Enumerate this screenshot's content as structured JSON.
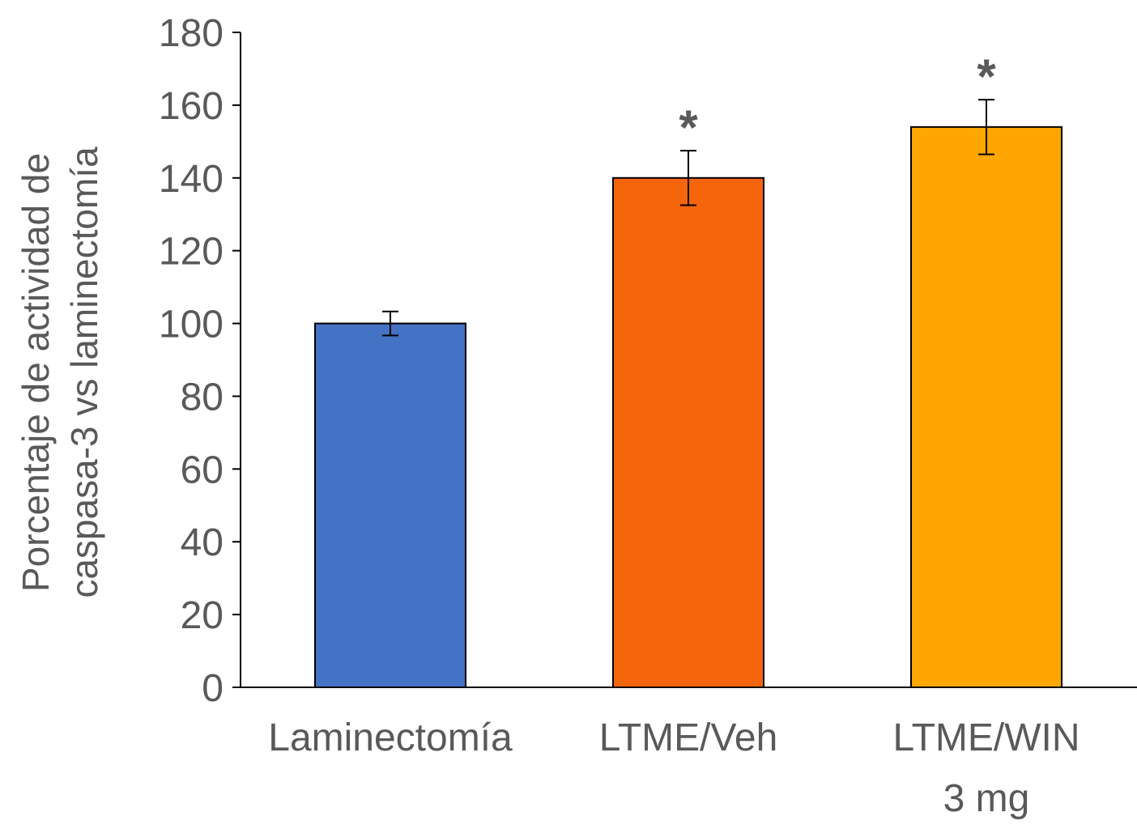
{
  "chart_data": {
    "type": "bar",
    "title": "",
    "xlabel": "",
    "ylabel": [
      "Porcentaje de actividad de",
      "caspasa-3 vs laminectomía"
    ],
    "ylim": [
      0,
      180
    ],
    "yticks": [
      0,
      20,
      40,
      60,
      80,
      100,
      120,
      140,
      160,
      180
    ],
    "categories": [
      [
        "Laminectomía"
      ],
      [
        "LTME/Veh"
      ],
      [
        "LTME/WIN",
        "3 mg"
      ]
    ],
    "values": [
      100,
      140,
      154
    ],
    "errors": [
      3.3,
      7.5,
      7.5
    ],
    "colors": [
      "#4472C4",
      "#F5650C",
      "#FFA600"
    ],
    "annotations": [
      "",
      "*",
      "*"
    ],
    "grid": false
  }
}
